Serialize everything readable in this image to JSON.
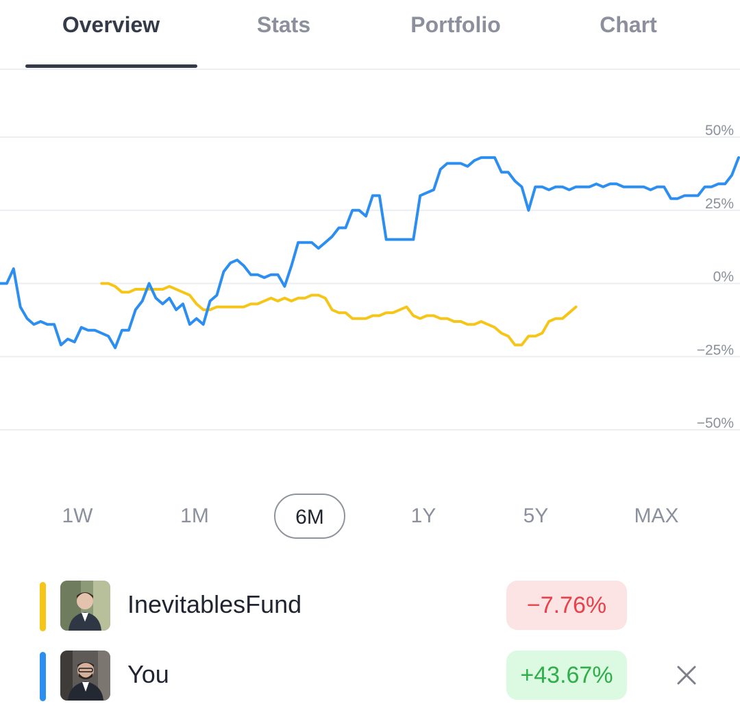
{
  "tabs": [
    {
      "label": "Overview",
      "active": true
    },
    {
      "label": "Stats",
      "active": false
    },
    {
      "label": "Portfolio",
      "active": false
    },
    {
      "label": "Chart",
      "active": false
    }
  ],
  "chart_data": {
    "type": "line",
    "y_ticks": [
      "50%",
      "25%",
      "0%",
      "−25%",
      "−50%"
    ],
    "ylim": [
      -50,
      50
    ],
    "grid": true,
    "series": [
      {
        "name": "You",
        "color": "#2b8ef0",
        "start_index": 0,
        "values": [
          0,
          0,
          5,
          -8,
          -12,
          -14,
          -13,
          -14,
          -14,
          -21,
          -19,
          -20,
          -15,
          -16,
          -16,
          -17,
          -18,
          -22,
          -16,
          -16,
          -9,
          -6,
          0,
          -5,
          -7,
          -5,
          -9,
          -7,
          -14,
          -12,
          -14,
          -6,
          -4,
          4,
          7,
          8,
          6,
          3,
          3,
          2,
          3,
          3,
          -1,
          6,
          14,
          14,
          14,
          12,
          14,
          16,
          19,
          19,
          25,
          25,
          23,
          30,
          30,
          15,
          15,
          15,
          15,
          15,
          30,
          31,
          32,
          39,
          41,
          41,
          41,
          40,
          42,
          43,
          43,
          43,
          38,
          38,
          35,
          33,
          25,
          33,
          33,
          32,
          33,
          33,
          32,
          33,
          33,
          33,
          34,
          33,
          34,
          34,
          33,
          33,
          33,
          33,
          32,
          33,
          33,
          29,
          29,
          30,
          30,
          30,
          33,
          33,
          34,
          34,
          37,
          43
        ]
      },
      {
        "name": "InevitablesFund",
        "color": "#f5c518",
        "start_index": 15,
        "values": [
          0,
          0,
          -1,
          -3,
          -3,
          -2,
          -2,
          -2,
          -2,
          -2,
          -1,
          -2,
          -3,
          -4,
          -7,
          -9,
          -9,
          -8,
          -8,
          -8,
          -8,
          -8,
          -7,
          -7,
          -6,
          -5,
          -6,
          -5,
          -6,
          -5,
          -5,
          -4,
          -4,
          -5,
          -9,
          -10,
          -10,
          -12,
          -12,
          -12,
          -11,
          -11,
          -10,
          -10,
          -9,
          -8,
          -11,
          -12,
          -11,
          -11,
          -12,
          -12,
          -13,
          -13,
          -14,
          -14,
          -13,
          -14,
          -15,
          -17,
          -18,
          -21,
          -21,
          -18,
          -18,
          -17,
          -13,
          -12,
          -12,
          -10,
          -8
        ]
      }
    ]
  },
  "ranges": [
    {
      "label": "1W",
      "active": false
    },
    {
      "label": "1M",
      "active": false
    },
    {
      "label": "6M",
      "active": true
    },
    {
      "label": "1Y",
      "active": false
    },
    {
      "label": "5Y",
      "active": false
    },
    {
      "label": "MAX",
      "active": false
    }
  ],
  "legend": [
    {
      "name": "InevitablesFund",
      "color": "#f5c518",
      "change": "−7.76%",
      "pill_bg": "#fde4e4",
      "pill_fg": "#e8414a"
    },
    {
      "name": "You",
      "color": "#2b8ef0",
      "change": "+43.67%",
      "pill_bg": "#dcf9e2",
      "pill_fg": "#2fae4a"
    }
  ],
  "icons": {
    "close": "close-icon"
  }
}
